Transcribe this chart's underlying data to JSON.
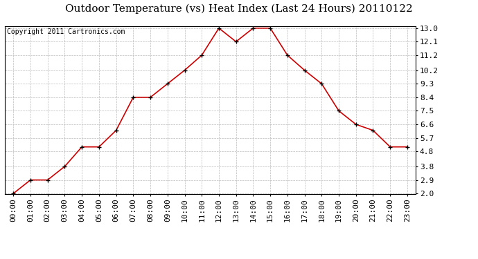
{
  "title": "Outdoor Temperature (vs) Heat Index (Last 24 Hours) 20110122",
  "copyright": "Copyright 2011 Cartronics.com",
  "x_labels": [
    "00:00",
    "01:00",
    "02:00",
    "03:00",
    "04:00",
    "05:00",
    "06:00",
    "07:00",
    "08:00",
    "09:00",
    "10:00",
    "11:00",
    "12:00",
    "13:00",
    "14:00",
    "15:00",
    "16:00",
    "17:00",
    "18:00",
    "19:00",
    "20:00",
    "21:00",
    "22:00",
    "23:00"
  ],
  "y_values": [
    2.0,
    2.9,
    2.9,
    3.8,
    5.1,
    5.1,
    6.2,
    8.4,
    8.4,
    9.3,
    10.2,
    11.2,
    13.0,
    12.1,
    13.0,
    13.0,
    11.2,
    10.2,
    9.3,
    7.5,
    6.6,
    6.2,
    5.1,
    5.1
  ],
  "y_ticks": [
    2.0,
    2.9,
    3.8,
    4.8,
    5.7,
    6.6,
    7.5,
    8.4,
    9.3,
    10.2,
    11.2,
    12.1,
    13.0
  ],
  "y_min": 2.0,
  "y_max": 13.0,
  "line_color": "#cc0000",
  "marker": "+",
  "marker_size": 5,
  "marker_color": "#000000",
  "bg_color": "#ffffff",
  "grid_color": "#bbbbbb",
  "title_fontsize": 11,
  "copyright_fontsize": 7,
  "tick_fontsize": 8
}
